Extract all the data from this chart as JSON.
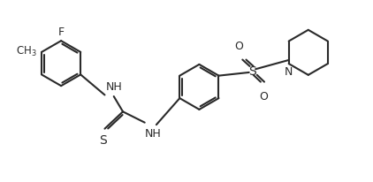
{
  "background_color": "#ffffff",
  "line_color": "#2a2a2a",
  "line_width": 1.5,
  "figsize": [
    4.22,
    2.07
  ],
  "dpi": 100,
  "xlim": [
    0,
    10
  ],
  "ylim": [
    0,
    5
  ]
}
